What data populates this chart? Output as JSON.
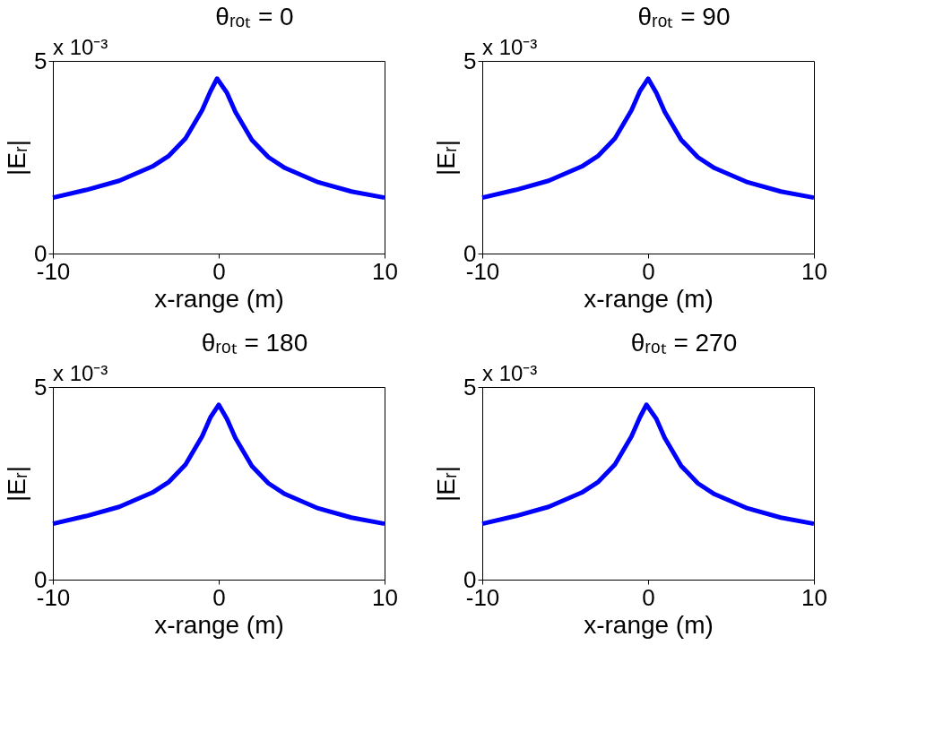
{
  "chart_data": [
    {
      "type": "line",
      "title": "θᵣₒₜ = 0",
      "xlabel": "x-range (m)",
      "ylabel": "|Eᵣ|",
      "annotations": [
        "x 10⁻³"
      ],
      "xlim": [
        -10,
        10
      ],
      "ylim": [
        0,
        5
      ],
      "xticks": [
        -10,
        0,
        10
      ],
      "yticks": [
        0,
        5
      ],
      "grid": false,
      "legend": false,
      "series": [
        {
          "color": "#0000ff",
          "x": [
            -10,
            -8,
            -6,
            -4,
            -3,
            -2,
            -1,
            -0.5,
            -0.1,
            0.5,
            1,
            2,
            3,
            4,
            6,
            8,
            10
          ],
          "values": [
            1.45,
            1.65,
            1.89,
            2.26,
            2.54,
            2.99,
            3.72,
            4.21,
            4.54,
            4.17,
            3.68,
            2.95,
            2.5,
            2.22,
            1.85,
            1.61,
            1.45
          ]
        }
      ]
    },
    {
      "type": "line",
      "title": "θᵣₒₜ = 90",
      "xlabel": "x-range (m)",
      "ylabel": "|Eᵣ|",
      "annotations": [
        "x 10⁻³"
      ],
      "xlim": [
        -10,
        10
      ],
      "ylim": [
        0,
        5
      ],
      "xticks": [
        -10,
        0,
        10
      ],
      "yticks": [
        0,
        5
      ],
      "grid": false,
      "legend": false,
      "series": [
        {
          "color": "#0000ff",
          "x": [
            -10,
            -8,
            -6,
            -4,
            -3,
            -2,
            -1,
            -0.5,
            0,
            0.5,
            1,
            2,
            3,
            4,
            6,
            8,
            10
          ],
          "values": [
            1.45,
            1.65,
            1.89,
            2.26,
            2.54,
            2.99,
            3.72,
            4.21,
            4.54,
            4.17,
            3.68,
            2.95,
            2.5,
            2.22,
            1.85,
            1.61,
            1.45
          ]
        }
      ]
    },
    {
      "type": "line",
      "title": "θᵣₒₜ = 180",
      "xlabel": "x-range (m)",
      "ylabel": "|Eᵣ|",
      "annotations": [
        "x 10⁻³"
      ],
      "xlim": [
        -10,
        10
      ],
      "ylim": [
        0,
        5
      ],
      "xticks": [
        -10,
        0,
        10
      ],
      "yticks": [
        0,
        5
      ],
      "grid": false,
      "legend": false,
      "series": [
        {
          "color": "#0000ff",
          "x": [
            -10,
            -8,
            -6,
            -4,
            -3,
            -2,
            -1,
            -0.5,
            0,
            0.5,
            1,
            2,
            3,
            4,
            6,
            8,
            10
          ],
          "values": [
            1.45,
            1.65,
            1.89,
            2.26,
            2.54,
            2.99,
            3.72,
            4.21,
            4.54,
            4.17,
            3.68,
            2.95,
            2.5,
            2.22,
            1.85,
            1.61,
            1.45
          ]
        }
      ]
    },
    {
      "type": "line",
      "title": "θᵣₒₜ = 270",
      "xlabel": "x-range (m)",
      "ylabel": "|Eᵣ|",
      "annotations": [
        "x 10⁻³"
      ],
      "xlim": [
        -10,
        10
      ],
      "ylim": [
        0,
        5
      ],
      "xticks": [
        -10,
        0,
        10
      ],
      "yticks": [
        0,
        5
      ],
      "grid": false,
      "legend": false,
      "series": [
        {
          "color": "#0000ff",
          "x": [
            -10,
            -8,
            -6,
            -4,
            -3,
            -2,
            -1,
            -0.5,
            -0.1,
            0.5,
            1,
            2,
            3,
            4,
            6,
            8,
            10
          ],
          "values": [
            1.45,
            1.65,
            1.89,
            2.26,
            2.54,
            2.99,
            3.72,
            4.21,
            4.54,
            4.17,
            3.68,
            2.95,
            2.5,
            2.22,
            1.85,
            1.61,
            1.45
          ]
        }
      ]
    }
  ]
}
